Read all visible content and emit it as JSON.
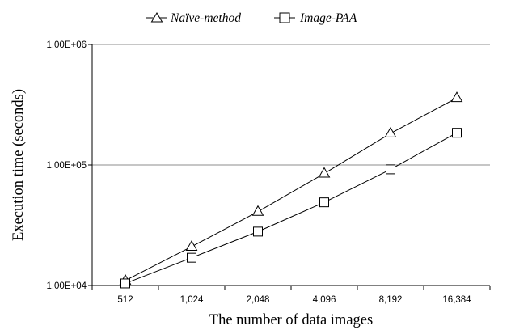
{
  "chart_data": {
    "type": "line",
    "title": "",
    "xlabel": "The number of data images",
    "ylabel": "Execution time (seconds)",
    "yscale": "log",
    "ylim": [
      10000,
      1000000
    ],
    "yticks": [
      10000,
      100000,
      1000000
    ],
    "ytick_labels": [
      "1.00E+04",
      "1.00E+05",
      "1.00E+06"
    ],
    "categories": [
      "512",
      "1,024",
      "2,048",
      "4,096",
      "8,192",
      "16,384"
    ],
    "grid": "horizontal",
    "legend_position": "top",
    "series": [
      {
        "name": "Naïve-method",
        "marker": "triangle",
        "values": [
          11000,
          21000,
          41000,
          85000,
          183000,
          360000
        ]
      },
      {
        "name": "Image-PAA",
        "marker": "square",
        "values": [
          10400,
          17000,
          28000,
          49000,
          92000,
          185000
        ]
      }
    ]
  }
}
